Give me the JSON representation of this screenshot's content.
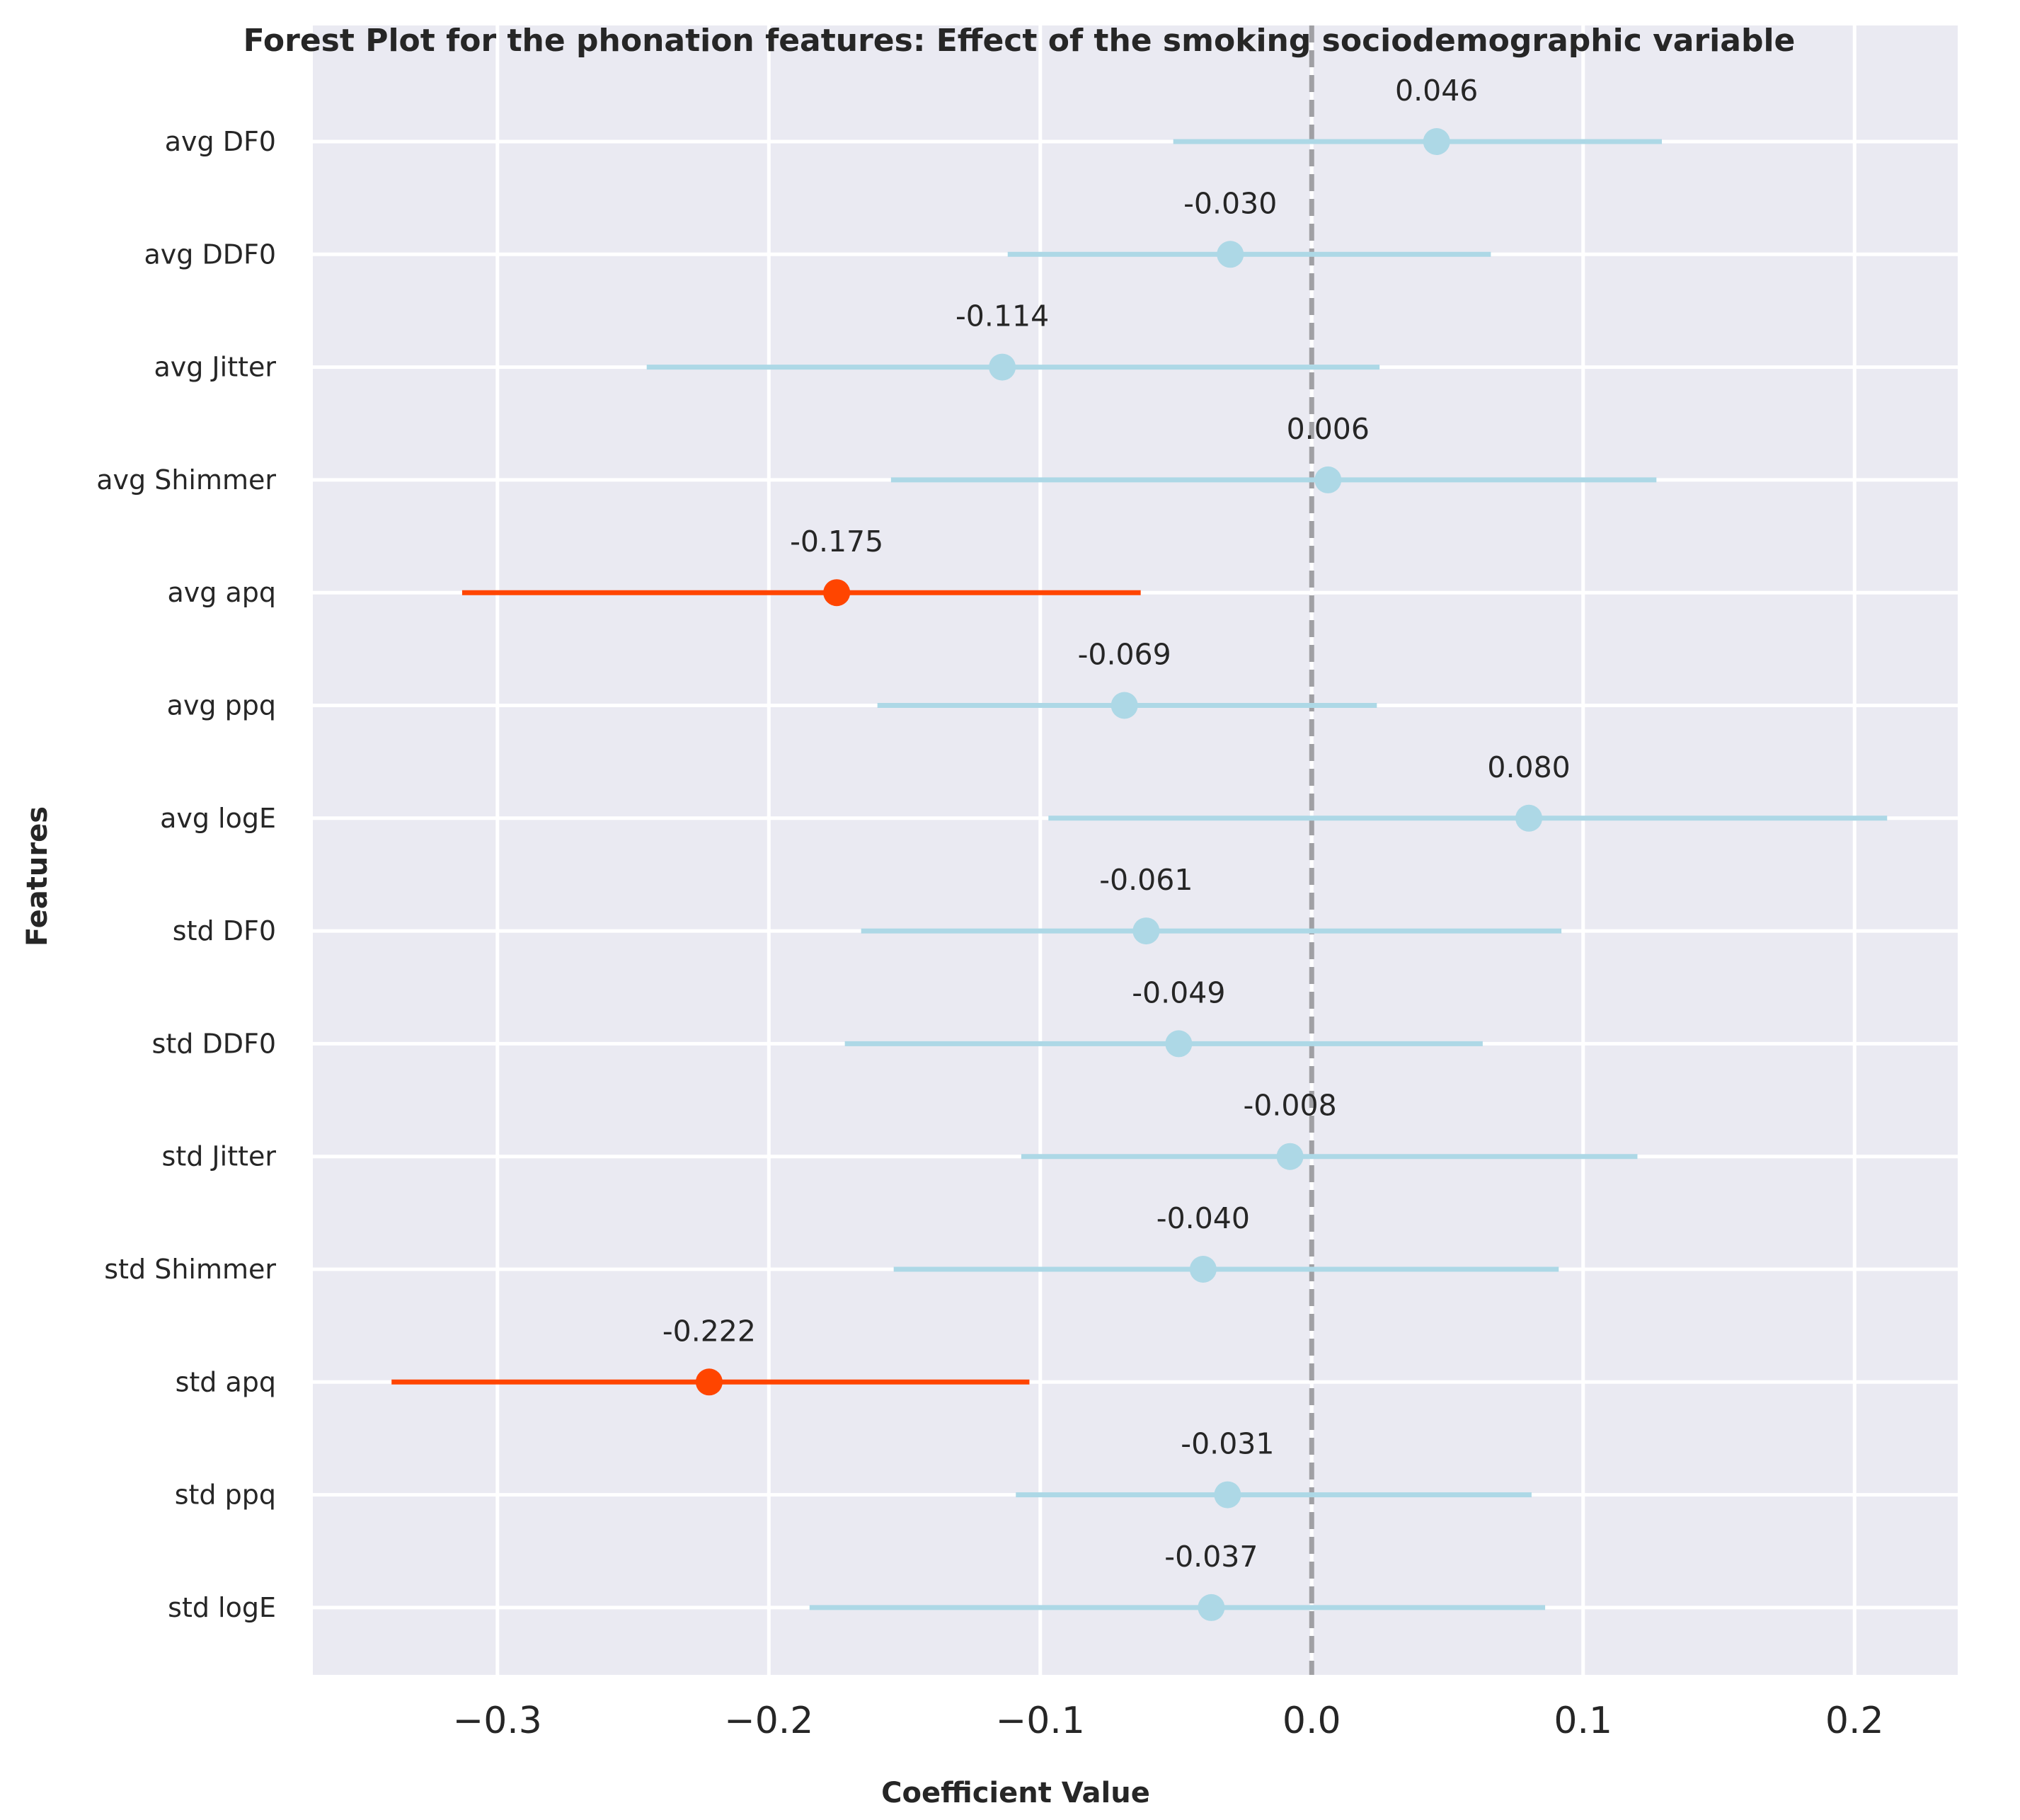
{
  "chart_data": {
    "type": "scatter",
    "subtype": "forest-plot",
    "title": "Forest Plot for the phonation features: Effect of the smoking sociodemographic variable",
    "xlabel": "Coefficient Value",
    "ylabel": "Features",
    "xlim": [
      -0.368,
      0.238
    ],
    "xticks": [
      -0.3,
      -0.2,
      -0.1,
      0.0,
      0.1,
      0.2
    ],
    "xtick_labels": [
      "−0.3",
      "−0.2",
      "−0.1",
      "0.0",
      "0.1",
      "0.2"
    ],
    "grid": true,
    "reference_line": 0.0,
    "features": [
      {
        "name": "avg DF0",
        "coef": 0.046,
        "ci": [
          -0.051,
          0.129
        ],
        "label": "0.046",
        "significant": false
      },
      {
        "name": "avg DDF0",
        "coef": -0.03,
        "ci": [
          -0.112,
          0.066
        ],
        "label": "-0.030",
        "significant": false
      },
      {
        "name": "avg Jitter",
        "coef": -0.114,
        "ci": [
          -0.245,
          0.025
        ],
        "label": "-0.114",
        "significant": false
      },
      {
        "name": "avg Shimmer",
        "coef": 0.006,
        "ci": [
          -0.155,
          0.127
        ],
        "label": "0.006",
        "significant": false
      },
      {
        "name": "avg apq",
        "coef": -0.175,
        "ci": [
          -0.313,
          -0.063
        ],
        "label": "-0.175",
        "significant": true
      },
      {
        "name": "avg ppq",
        "coef": -0.069,
        "ci": [
          -0.16,
          0.024
        ],
        "label": "-0.069",
        "significant": false
      },
      {
        "name": "avg logE",
        "coef": 0.08,
        "ci": [
          -0.097,
          0.212
        ],
        "label": "0.080",
        "significant": false
      },
      {
        "name": "std DF0",
        "coef": -0.061,
        "ci": [
          -0.166,
          0.092
        ],
        "label": "-0.061",
        "significant": false
      },
      {
        "name": "std DDF0",
        "coef": -0.049,
        "ci": [
          -0.172,
          0.063
        ],
        "label": "-0.049",
        "significant": false
      },
      {
        "name": "std Jitter",
        "coef": -0.008,
        "ci": [
          -0.107,
          0.12
        ],
        "label": "-0.008",
        "significant": false
      },
      {
        "name": "std Shimmer",
        "coef": -0.04,
        "ci": [
          -0.154,
          0.091
        ],
        "label": "-0.040",
        "significant": false
      },
      {
        "name": "std apq",
        "coef": -0.222,
        "ci": [
          -0.339,
          -0.104
        ],
        "label": "-0.222",
        "significant": true
      },
      {
        "name": "std ppq",
        "coef": -0.031,
        "ci": [
          -0.109,
          0.081
        ],
        "label": "-0.031",
        "significant": false
      },
      {
        "name": "std logE",
        "coef": -0.037,
        "ci": [
          -0.185,
          0.086
        ],
        "label": "-0.037",
        "significant": false
      }
    ],
    "colors": {
      "background": "#eaeaf2",
      "grid": "#ffffff",
      "nonsignificant": "#add8e6",
      "significant": "#ff4500",
      "reference_line": "#a0a0a4",
      "text": "#262626"
    }
  }
}
